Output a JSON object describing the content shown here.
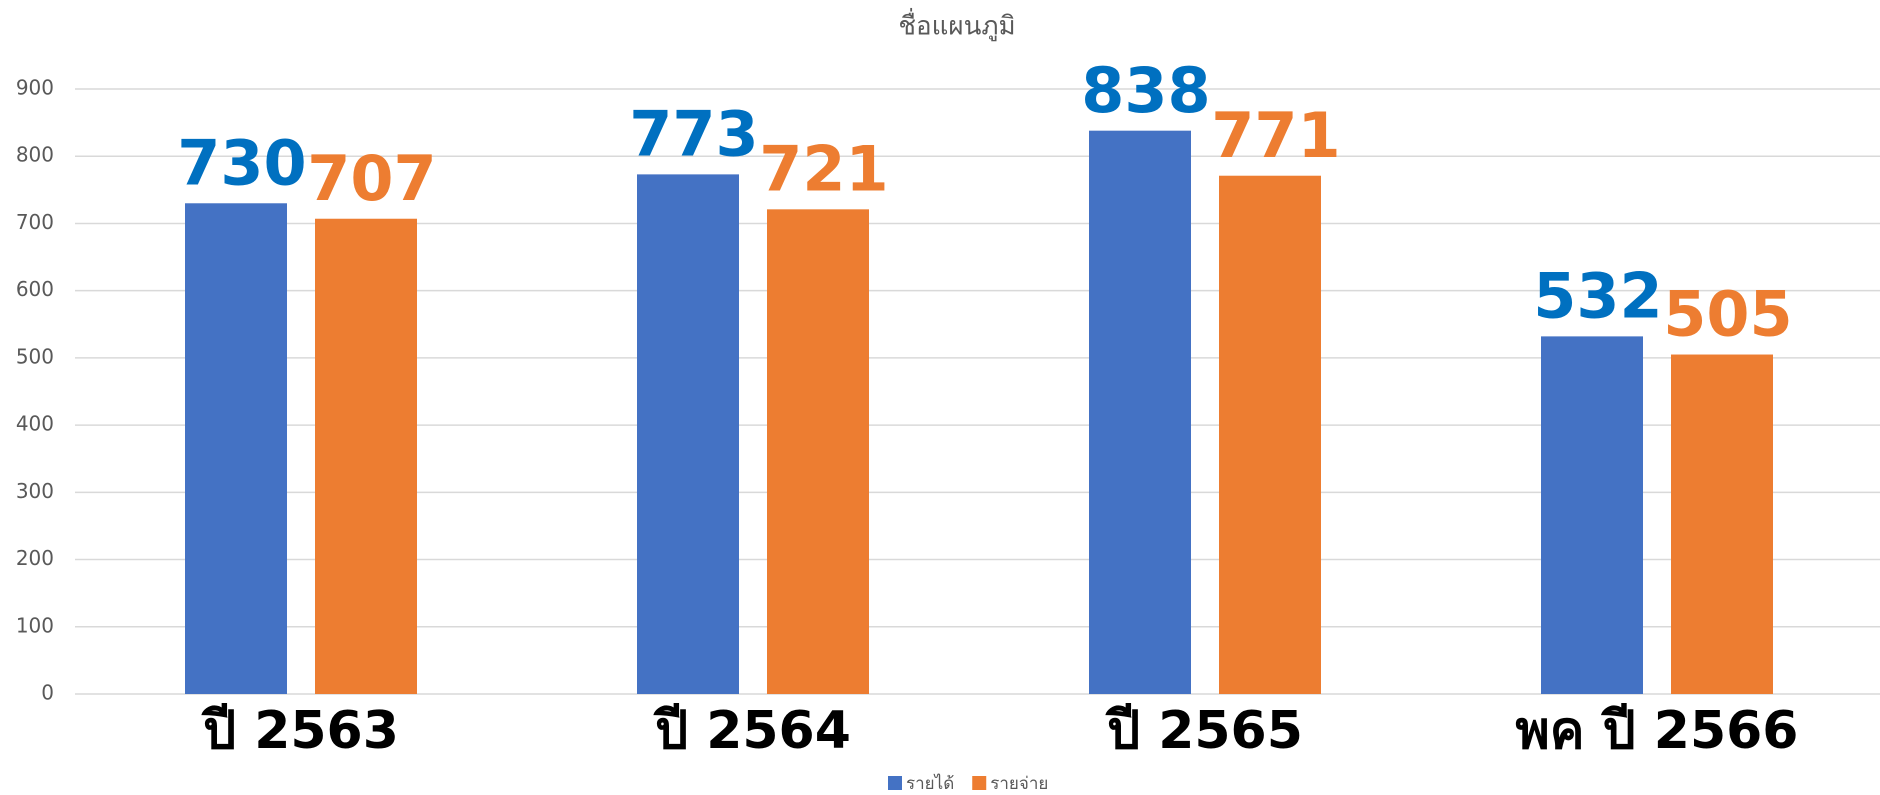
{
  "chart_data": {
    "type": "bar",
    "title": "ชื่อแผนภูมิ",
    "categories": [
      "ปี 2563",
      "ปี 2564",
      "ปี 2565",
      "พค ปี 2566"
    ],
    "series": [
      {
        "name": "รายได้",
        "color": "#4472c4",
        "label_color": "#0070c0",
        "values": [
          730,
          773,
          838,
          532
        ]
      },
      {
        "name": "รายจ่าย",
        "color": "#ed7d31",
        "label_color": "#ed7d31",
        "values": [
          707,
          721,
          771,
          505
        ]
      }
    ],
    "ylim": [
      0,
      900
    ],
    "yticks": [
      0,
      100,
      200,
      300,
      400,
      500,
      600,
      700,
      800,
      900
    ],
    "grid": true
  }
}
